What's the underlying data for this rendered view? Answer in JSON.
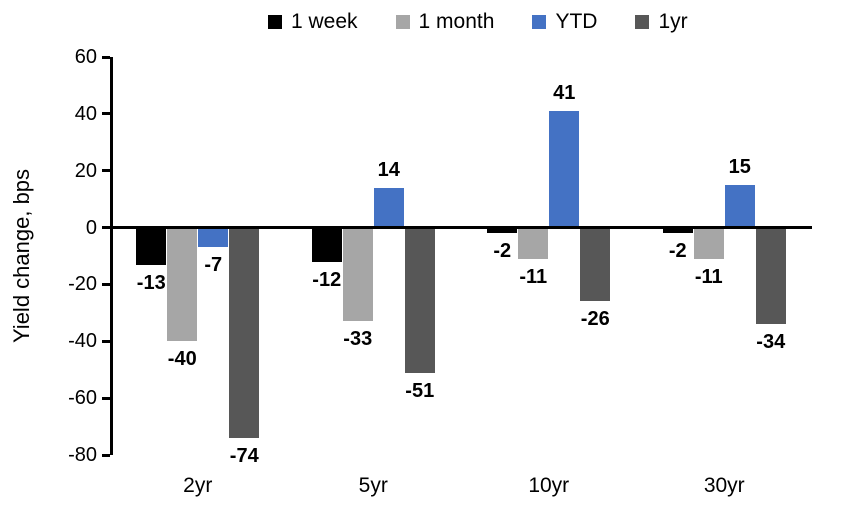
{
  "chart_data": {
    "type": "bar",
    "title": "",
    "ylabel": "Yield change, bps",
    "xlabel": "",
    "categories": [
      "2yr",
      "5yr",
      "10yr",
      "30yr"
    ],
    "series": [
      {
        "name": "1 week",
        "color": "#000000",
        "values": [
          -13,
          -12,
          -2,
          -2
        ]
      },
      {
        "name": "1 month",
        "color": "#A6A6A6",
        "values": [
          -40,
          -33,
          -11,
          -11
        ]
      },
      {
        "name": "YTD",
        "color": "#4472C4",
        "values": [
          -7,
          14,
          41,
          15
        ]
      },
      {
        "name": "1yr",
        "color": "#575757",
        "values": [
          -74,
          -51,
          -26,
          -34
        ]
      }
    ],
    "ylim": [
      -80,
      60
    ],
    "yticks": [
      60,
      40,
      20,
      0,
      -20,
      -40,
      -60,
      -80
    ],
    "grid": false,
    "legend_position": "top",
    "data_labels": true,
    "axis_color": "#000000",
    "background": "#FFFFFF"
  }
}
